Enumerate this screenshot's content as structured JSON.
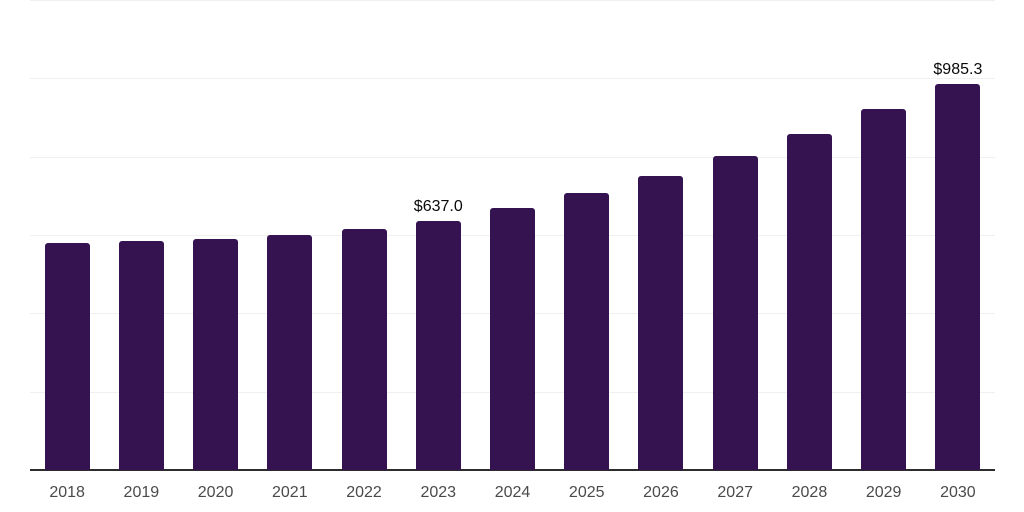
{
  "chart_data": {
    "type": "bar",
    "title": "",
    "xlabel": "",
    "ylabel": "",
    "categories": [
      "2018",
      "2019",
      "2020",
      "2021",
      "2022",
      "2023",
      "2024",
      "2025",
      "2026",
      "2027",
      "2028",
      "2029",
      "2030"
    ],
    "values": [
      579.4,
      584.5,
      589.7,
      599.9,
      615.2,
      637.0,
      668.8,
      707.1,
      750.5,
      801.5,
      857.7,
      921.5,
      985.3
    ],
    "data_labels": [
      "",
      "",
      "",
      "",
      "",
      "$637.0",
      "",
      "",
      "",
      "",
      "",
      "",
      "$985.3"
    ],
    "labeled_values": [
      {
        "category": "2023",
        "label": "$637.0"
      },
      {
        "category": "2030",
        "label": "$985.3"
      }
    ],
    "ylim": [
      0,
      1200
    ],
    "gridline_step": 200,
    "grid": true,
    "legend": false,
    "y_axis_ticks_visible": false
  },
  "colors": {
    "bar": "#351250",
    "grid": "#f0f0f0",
    "axis": "#2d2d2d",
    "x_tick_label": "#4a4a4a",
    "value_label": "#0a0a0a",
    "background": "#ffffff"
  }
}
